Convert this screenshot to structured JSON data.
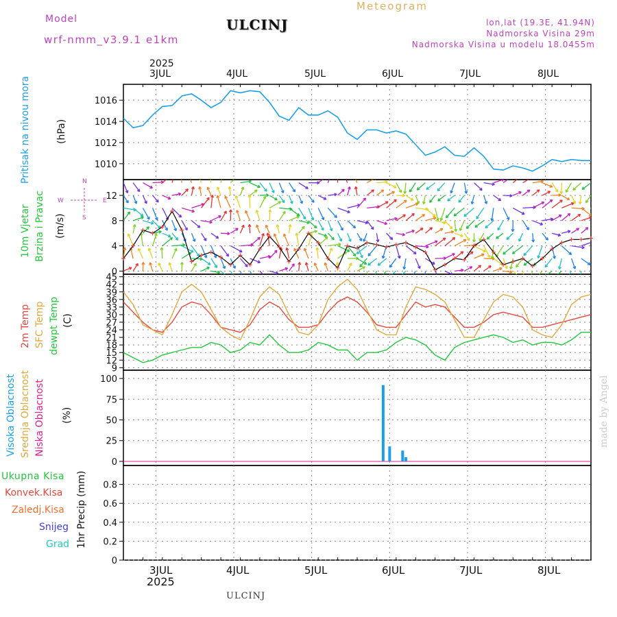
{
  "header": {
    "model_label": "Model",
    "model_name": "wrf-nmm_v3.9.1 e1km",
    "station": "ULCINJ",
    "title": "Meteogram",
    "lonlat": "lon,lat (19.3E, 41.94N)",
    "elevation": "Nadmorska Visina 29m",
    "model_elevation": "Nadmorska Visina u modelu 18.0455m",
    "footer_station": "ULCINJ",
    "credit": "made by Angel"
  },
  "time_axis": {
    "year": "2025",
    "days": [
      "3JUL",
      "4JUL",
      "5JUL",
      "6JUL",
      "7JUL",
      "8JUL"
    ]
  },
  "panel_labels": {
    "pressure": [
      "Pritisak na nivou mora",
      "(hPa)"
    ],
    "wind": [
      "10m Vjetar",
      "Brzina i Pravac",
      "(m/s)"
    ],
    "compass": [
      "N",
      "W",
      "E",
      "S"
    ],
    "temp": [
      "2m Temp",
      "SFC Temp",
      "dewpt Temp",
      "(C)"
    ],
    "cloud": [
      "Visoka Oblacnost",
      "Srednja Oblacnost",
      "Niska Oblacnost",
      "(%)"
    ],
    "precip_legend": [
      "Ukupna Kisa",
      "Konvek.Kisa",
      "Zaledj.Kisa",
      "Snijeg",
      "Grad"
    ],
    "precip_axis": "1hr Precip (mm)"
  },
  "colors": {
    "pressure": "#1aa0e8",
    "temp2m": "#e8463c",
    "sfc": "#e0a83a",
    "dewpt": "#22c83a",
    "highcloud": "#1aa0e8",
    "midcloud": "#e0a83a",
    "lowcloud": "#e0208c",
    "snow": "#4040e0",
    "hail": "#20c8c8",
    "wind_label": "#22c83a",
    "magenta": "#c040c0"
  },
  "chart_data": [
    {
      "type": "line",
      "name": "pressure",
      "ylim": [
        1008.5,
        1017.5
      ],
      "yticks": [
        1010,
        1012,
        1014,
        1016
      ],
      "x": [
        0,
        3,
        6,
        9,
        12,
        15,
        18,
        21,
        24,
        27,
        30,
        33,
        36,
        39,
        42,
        45,
        48,
        51,
        54,
        57,
        60,
        63,
        66,
        69,
        72,
        75,
        78,
        81,
        84,
        87,
        90,
        93,
        96,
        99,
        102,
        105,
        108,
        111,
        114,
        117,
        120,
        123,
        126,
        129,
        132,
        135,
        138,
        141,
        144
      ],
      "values": [
        1014.3,
        1013.4,
        1013.6,
        1014.6,
        1015.4,
        1015.5,
        1016.4,
        1016.6,
        1016.0,
        1015.3,
        1015.8,
        1016.9,
        1016.7,
        1016.9,
        1016.8,
        1015.8,
        1014.5,
        1014.1,
        1015.3,
        1014.6,
        1014.6,
        1015.0,
        1014.4,
        1012.9,
        1012.3,
        1013.2,
        1013.2,
        1012.9,
        1013.1,
        1012.8,
        1011.8,
        1010.8,
        1011.1,
        1011.6,
        1010.8,
        1010.7,
        1011.5,
        1010.7,
        1009.5,
        1009.4,
        1009.8,
        1009.6,
        1009.3,
        1009.8,
        1010.4,
        1010.2,
        1010.4,
        1010.3,
        1010.3
      ]
    },
    {
      "type": "line",
      "name": "wind",
      "ylim": [
        -0.5,
        14.5
      ],
      "yticks": [
        0,
        4,
        8,
        12
      ],
      "x": [
        0,
        3,
        6,
        9,
        12,
        15,
        18,
        21,
        24,
        27,
        30,
        33,
        36,
        39,
        42,
        45,
        48,
        51,
        54,
        57,
        60,
        63,
        66,
        69,
        72,
        75,
        78,
        81,
        84,
        87,
        90,
        93,
        96,
        99,
        102,
        105,
        108,
        111,
        114,
        117,
        120,
        123,
        126,
        129,
        132,
        135,
        138,
        141,
        144
      ],
      "values": [
        2.0,
        4.0,
        6.5,
        6.0,
        7.0,
        9.5,
        6.5,
        1.5,
        2.5,
        3.0,
        2.2,
        1.0,
        2.5,
        1.0,
        3.5,
        5.5,
        3.8,
        1.5,
        3.5,
        6.0,
        4.5,
        2.0,
        0.5,
        4.0,
        3.6,
        4.5,
        4.2,
        3.8,
        4.2,
        4.5,
        3.8,
        3.0,
        0.2,
        1.0,
        2.0,
        1.8,
        4.0,
        5.0,
        3.0,
        1.0,
        1.5,
        2.0,
        0.8,
        2.0,
        3.5,
        4.5,
        5.0,
        5.0,
        5.2
      ]
    },
    {
      "type": "line",
      "name": "temperature",
      "ylim": [
        8,
        46
      ],
      "yticks": [
        9,
        12,
        15,
        18,
        21,
        24,
        27,
        30,
        33,
        36,
        39,
        42,
        45
      ],
      "x": [
        0,
        3,
        6,
        9,
        12,
        15,
        18,
        21,
        24,
        27,
        30,
        33,
        36,
        39,
        42,
        45,
        48,
        51,
        54,
        57,
        60,
        63,
        66,
        69,
        72,
        75,
        78,
        81,
        84,
        87,
        90,
        93,
        96,
        99,
        102,
        105,
        108,
        111,
        114,
        117,
        120,
        123,
        126,
        129,
        132,
        135,
        138,
        141,
        144
      ],
      "series": [
        {
          "name": "2m Temp",
          "values": [
            35,
            31,
            27,
            24,
            23,
            27,
            33,
            35,
            34,
            30,
            25,
            24,
            23,
            26,
            32,
            35,
            33,
            28,
            25,
            25,
            26,
            31,
            35,
            37,
            35,
            31,
            26,
            25,
            25,
            30,
            35,
            33,
            34,
            33,
            29,
            25,
            25,
            27,
            30,
            31,
            30,
            29,
            25,
            25,
            26,
            27,
            28,
            29,
            30
          ]
        },
        {
          "name": "SFC Temp",
          "values": [
            39,
            34,
            26,
            24,
            22,
            30,
            39,
            42,
            39,
            32,
            25,
            22,
            20,
            28,
            37,
            41,
            38,
            30,
            23,
            22,
            26,
            36,
            41,
            44,
            40,
            32,
            24,
            22,
            22,
            33,
            41,
            40,
            38,
            35,
            28,
            21,
            21,
            28,
            35,
            38,
            37,
            33,
            24,
            22,
            21,
            26,
            34,
            37,
            38
          ]
        },
        {
          "name": "dewpt Temp",
          "values": [
            15,
            13,
            11,
            12,
            14,
            15,
            16,
            17,
            17,
            19,
            18,
            15,
            16,
            19,
            18,
            22,
            18,
            15,
            15,
            16,
            19,
            18,
            16,
            16,
            12,
            15,
            15,
            16,
            19,
            21,
            20,
            18,
            14,
            12,
            17,
            19,
            20,
            21,
            22,
            21,
            19,
            20,
            18,
            19,
            19,
            18,
            20,
            23,
            23
          ]
        }
      ]
    },
    {
      "type": "bar",
      "name": "cloud",
      "ylim": [
        -5,
        110
      ],
      "yticks": [
        0,
        25,
        50,
        75,
        100
      ],
      "x": [
        80,
        82,
        86,
        87
      ],
      "series": [
        {
          "name": "Visoka Oblacnost",
          "values": [
            92,
            18,
            13,
            5
          ]
        }
      ]
    },
    {
      "type": "bar",
      "name": "precipitation",
      "ylim": [
        0,
        1.0
      ],
      "yticks": [
        0,
        0.2,
        0.4,
        0.6,
        0.8
      ],
      "x": [],
      "values": []
    }
  ]
}
